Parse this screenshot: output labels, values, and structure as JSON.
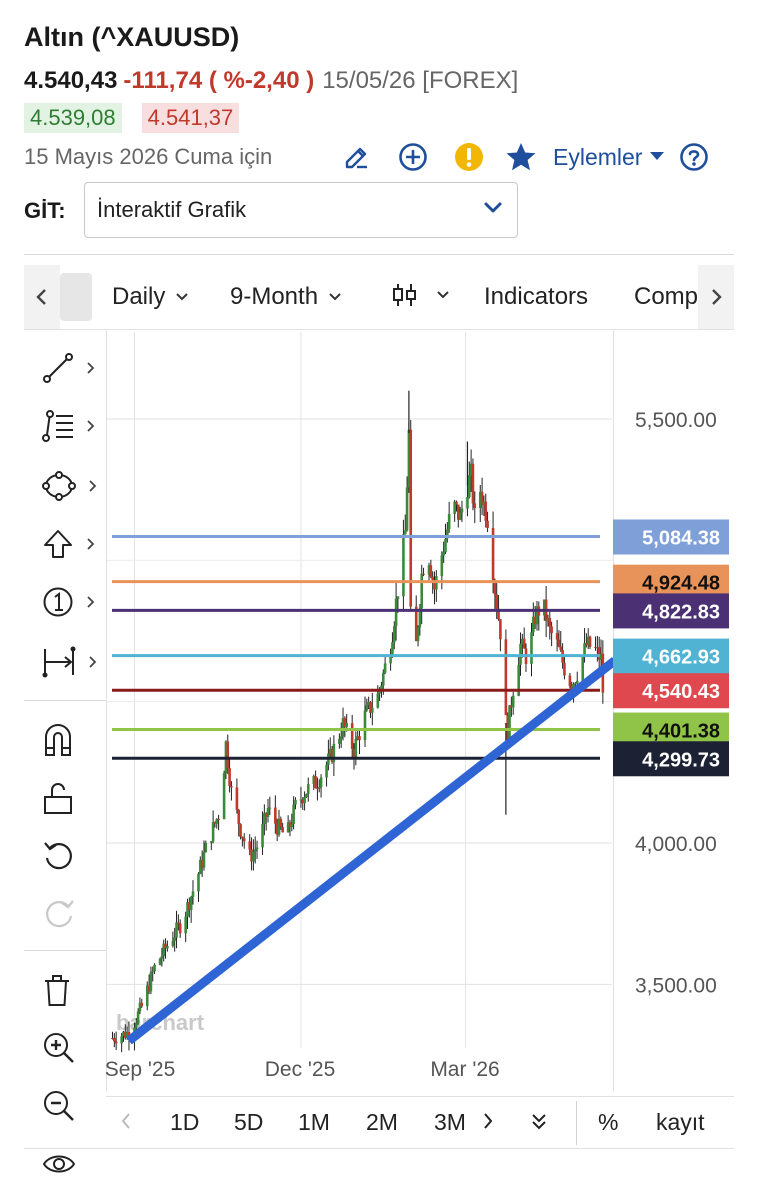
{
  "header": {
    "title": "Altın (^XAUUSD)",
    "last": "4.540,43",
    "change": "-111,74 ( %-2,40 )",
    "meta": "15/05/26 [FOREX]",
    "bid": "4.539,08",
    "ask": "4.541,37",
    "date_text": "15 Mayıs 2026 Cuma için",
    "actions_label": "Eylemler"
  },
  "nav": {
    "git_label": "GİT:",
    "select_value": "İnteraktif Grafik"
  },
  "toolbar": {
    "interval": "Daily",
    "range": "9-Month",
    "indicators": "Indicators",
    "compare": "Comp"
  },
  "bottom_bar": {
    "btn_1d": "1D",
    "btn_5d": "5D",
    "btn_1m": "1M",
    "btn_2m": "2M",
    "btn_3m": "3M",
    "percent": "%",
    "save": "kayıt"
  },
  "colors": {
    "up": "#3a8a3a",
    "down": "#c0392b",
    "trendline": "#2f64d4",
    "accent": "#1f4e9c"
  },
  "chart_data": {
    "type": "candlestick",
    "source": "barchart",
    "x_ticks": [
      "Sep '25",
      "Dec '25",
      "Mar '26"
    ],
    "y_ticks": [
      "5,500.00",
      "4,000.00",
      "3,500.00"
    ],
    "ylim": [
      3320,
      5800
    ],
    "y_tick_values": [
      5500,
      4000,
      3500
    ],
    "last_price": 4540.43,
    "levels": [
      {
        "label": "5,084.38",
        "value": 5084.38,
        "color": "#7e9fd8",
        "text_color": "#ffffff"
      },
      {
        "label": "4,924.48",
        "value": 4924.48,
        "color": "#e8935a",
        "text_color": "#111111"
      },
      {
        "label": "4,822.83",
        "value": 4822.83,
        "color": "#4b3074",
        "text_color": "#ffffff"
      },
      {
        "label": "4,662.93",
        "value": 4662.93,
        "color": "#50b3d3",
        "text_color": "#ffffff"
      },
      {
        "label": "4,540.43",
        "value": 4540.43,
        "color": "#e0484f",
        "text_color": "#ffffff",
        "line_color": "#8b1a1a"
      },
      {
        "label": "4,401.38",
        "value": 4401.38,
        "color": "#8fc449",
        "text_color": "#111111"
      },
      {
        "label": "4,299.73",
        "value": 4299.73,
        "color": "#1c2233",
        "text_color": "#ffffff"
      }
    ],
    "trendline": {
      "from": {
        "date": "2025-08-29",
        "price": 3300
      },
      "to": {
        "date": "2026-05-15",
        "price": 4610
      }
    },
    "price_path": [
      [
        "2025-08-20",
        3310
      ],
      [
        "2025-08-29",
        3330
      ],
      [
        "2025-09-05",
        3420
      ],
      [
        "2025-09-12",
        3560
      ],
      [
        "2025-09-20",
        3650
      ],
      [
        "2025-09-27",
        3720
      ],
      [
        "2025-10-04",
        3850
      ],
      [
        "2025-10-11",
        4000
      ],
      [
        "2025-10-18",
        4120
      ],
      [
        "2025-10-21",
        4350
      ],
      [
        "2025-10-24",
        4180
      ],
      [
        "2025-10-29",
        4050
      ],
      [
        "2025-11-03",
        3950
      ],
      [
        "2025-11-08",
        4000
      ],
      [
        "2025-11-13",
        4120
      ],
      [
        "2025-11-18",
        4060
      ],
      [
        "2025-11-23",
        4020
      ],
      [
        "2025-11-28",
        4130
      ],
      [
        "2025-12-03",
        4180
      ],
      [
        "2025-12-10",
        4220
      ],
      [
        "2025-12-17",
        4300
      ],
      [
        "2025-12-24",
        4420
      ],
      [
        "2025-12-30",
        4330
      ],
      [
        "2026-01-05",
        4450
      ],
      [
        "2026-01-12",
        4520
      ],
      [
        "2026-01-19",
        4700
      ],
      [
        "2026-01-24",
        4950
      ],
      [
        "2026-01-27",
        5100
      ],
      [
        "2026-01-29",
        5450
      ],
      [
        "2026-01-30",
        4800
      ],
      [
        "2026-02-02",
        4700
      ],
      [
        "2026-02-05",
        4950
      ],
      [
        "2026-02-08",
        5050
      ],
      [
        "2026-02-12",
        4900
      ],
      [
        "2026-02-17",
        5050
      ],
      [
        "2026-02-22",
        5200
      ],
      [
        "2026-02-26",
        5150
      ],
      [
        "2026-03-01",
        5250
      ],
      [
        "2026-03-04",
        5300
      ],
      [
        "2026-03-06",
        5150
      ],
      [
        "2026-03-09",
        5250
      ],
      [
        "2026-03-13",
        5150
      ],
      [
        "2026-03-17",
        4900
      ],
      [
        "2026-03-20",
        4750
      ],
      [
        "2026-03-22",
        4450
      ],
      [
        "2026-03-24",
        4400
      ],
      [
        "2026-03-27",
        4550
      ],
      [
        "2026-03-31",
        4700
      ],
      [
        "2026-04-04",
        4650
      ],
      [
        "2026-04-08",
        4800
      ],
      [
        "2026-04-12",
        4850
      ],
      [
        "2026-04-16",
        4750
      ],
      [
        "2026-04-20",
        4700
      ],
      [
        "2026-04-24",
        4620
      ],
      [
        "2026-04-28",
        4560
      ],
      [
        "2026-05-02",
        4620
      ],
      [
        "2026-05-06",
        4700
      ],
      [
        "2026-05-10",
        4690
      ],
      [
        "2026-05-14",
        4650
      ],
      [
        "2026-05-15",
        4540
      ]
    ],
    "notable_highs": [
      [
        "2026-01-29",
        5600
      ],
      [
        "2026-03-02",
        5420
      ]
    ],
    "notable_lows": [
      [
        "2026-03-23",
        4100
      ]
    ]
  }
}
